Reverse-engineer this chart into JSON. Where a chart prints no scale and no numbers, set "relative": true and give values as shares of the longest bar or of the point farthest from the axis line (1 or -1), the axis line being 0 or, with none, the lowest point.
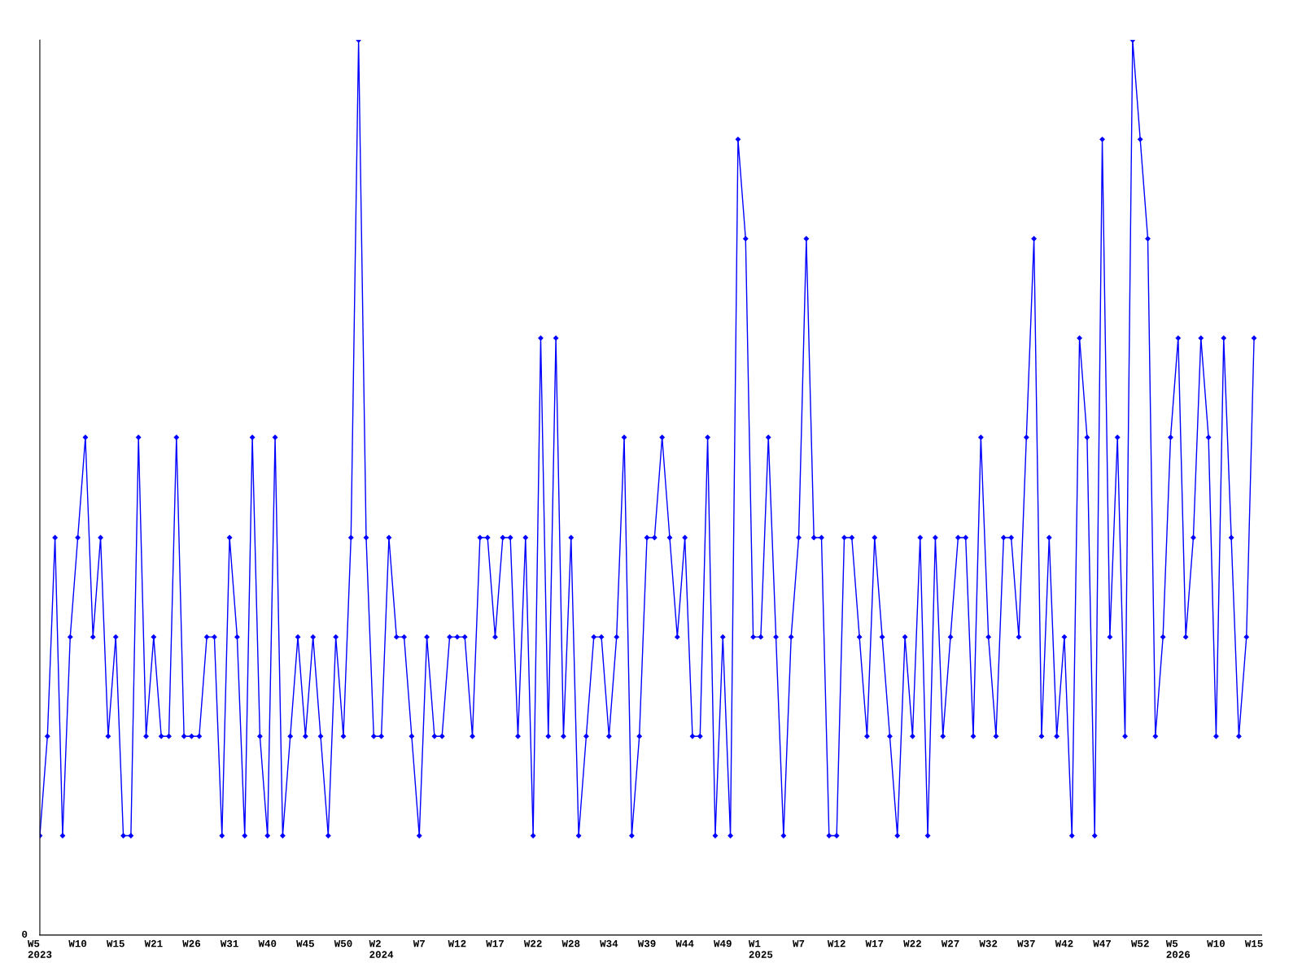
{
  "chart_data": {
    "type": "line",
    "relative": true,
    "color": "#0000ff",
    "marker": "diamond",
    "line_style": "solid",
    "grid": false,
    "legend": false,
    "annotations": [
      "0"
    ],
    "categories": [
      "W5\n2023",
      null,
      null,
      null,
      null,
      "W10",
      null,
      null,
      null,
      null,
      "W15",
      null,
      null,
      null,
      null,
      "W21",
      null,
      null,
      null,
      null,
      "W26",
      null,
      null,
      null,
      null,
      "W31",
      null,
      null,
      null,
      null,
      "W40",
      null,
      null,
      null,
      null,
      "W45",
      null,
      null,
      null,
      null,
      "W50",
      null,
      null,
      null,
      null,
      "W2\n2024",
      null,
      null,
      null,
      null,
      "W7",
      null,
      null,
      null,
      null,
      "W12",
      null,
      null,
      null,
      null,
      "W17",
      null,
      null,
      null,
      null,
      "W22",
      null,
      null,
      null,
      null,
      "W28",
      null,
      null,
      null,
      null,
      "W34",
      null,
      null,
      null,
      null,
      "W39",
      null,
      null,
      null,
      null,
      "W44",
      null,
      null,
      null,
      null,
      "W49",
      null,
      null,
      null,
      null,
      "W1\n2025",
      null,
      null,
      null,
      null,
      "W7",
      null,
      null,
      null,
      null,
      "W12",
      null,
      null,
      null,
      null,
      "W17",
      null,
      null,
      null,
      null,
      "W22",
      null,
      null,
      null,
      null,
      "W27",
      null,
      null,
      null,
      null,
      "W32",
      null,
      null,
      null,
      null,
      "W37",
      null,
      null,
      null,
      null,
      "W42",
      null,
      null,
      null,
      null,
      "W47",
      null,
      null,
      null,
      null,
      "W52",
      null,
      null,
      null,
      null,
      "W5\n2026",
      null,
      null,
      null,
      null,
      "W10",
      null,
      null,
      null,
      null,
      "W15"
    ],
    "values": [
      0.111,
      0.222,
      0.444,
      0.111,
      0.333,
      0.444,
      0.556,
      0.333,
      0.444,
      0.222,
      0.333,
      0.111,
      0.111,
      0.556,
      0.222,
      0.333,
      0.222,
      0.222,
      0.556,
      0.222,
      0.222,
      0.222,
      0.333,
      0.333,
      0.111,
      0.444,
      0.333,
      0.111,
      0.556,
      0.222,
      0.111,
      0.556,
      0.111,
      0.222,
      0.333,
      0.222,
      0.333,
      0.222,
      0.111,
      0.333,
      0.222,
      0.444,
      1,
      0.444,
      0.222,
      0.222,
      0.444,
      0.333,
      0.333,
      0.222,
      0.111,
      0.333,
      0.222,
      0.222,
      0.333,
      0.333,
      0.333,
      0.222,
      0.444,
      0.444,
      0.333,
      0.444,
      0.444,
      0.222,
      0.444,
      0.111,
      0.667,
      0.222,
      0.667,
      0.222,
      0.444,
      0.111,
      0.222,
      0.333,
      0.333,
      0.222,
      0.333,
      0.556,
      0.111,
      0.222,
      0.444,
      0.444,
      0.556,
      0.444,
      0.333,
      0.444,
      0.222,
      0.222,
      0.556,
      0.111,
      0.333,
      0.111,
      0.889,
      0.778,
      0.333,
      0.333,
      0.556,
      0.333,
      0.111,
      0.333,
      0.444,
      0.778,
      0.444,
      0.444,
      0.111,
      0.111,
      0.444,
      0.444,
      0.333,
      0.222,
      0.444,
      0.333,
      0.222,
      0.111,
      0.333,
      0.222,
      0.444,
      0.111,
      0.444,
      0.222,
      0.333,
      0.444,
      0.444,
      0.222,
      0.556,
      0.333,
      0.222,
      0.444,
      0.444,
      0.333,
      0.556,
      0.778,
      0.222,
      0.444,
      0.222,
      0.333,
      0.111,
      0.667,
      0.556,
      0.111,
      0.889,
      0.333,
      0.556,
      0.222,
      1,
      0.889,
      0.778,
      0.222,
      0.333,
      0.556,
      0.667,
      0.333,
      0.444,
      0.667,
      0.556,
      0.222,
      0.667,
      0.444,
      0.222,
      0.333,
      0.667
    ]
  }
}
